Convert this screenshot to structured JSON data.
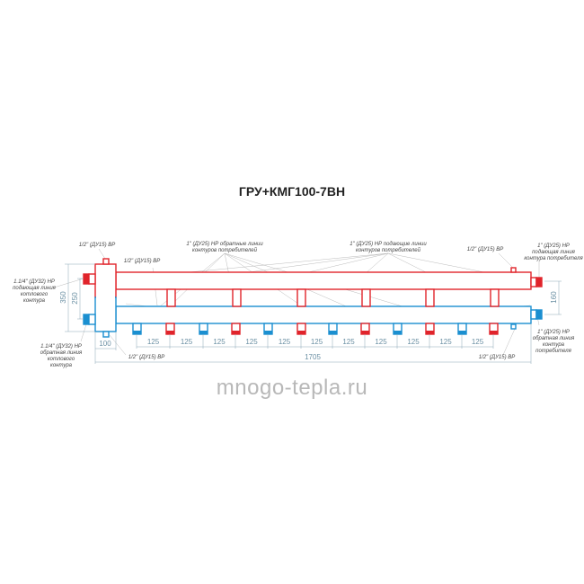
{
  "title": "ГРУ+КМГ100-7ВН",
  "watermark": "mnogo-tepla.ru",
  "colors": {
    "supply": "#e0242b",
    "return": "#1b8fd0",
    "dimension": "#6a8fa3"
  },
  "notes": {
    "top_left_nipple": "1/2\" (ДУ15) ВР",
    "inner_nipple": "1/2\" (ДУ15) ВР",
    "return_lines": [
      "1\" (ДУ25) НР обратные линии",
      "контуров потребителей"
    ],
    "supply_lines": [
      "1\" (ДУ25) НР подающие линии",
      "контуров потребителей"
    ],
    "top_right_nipple": "1/2\" (ДУ15) ВР",
    "right_supply": [
      "1\" (ДУ25) НР",
      "подающая линия",
      "контура потребителя"
    ],
    "left_supply": [
      "1.1/4\" (ДУ32) НР",
      "подающая линия",
      "котлового",
      "контура"
    ],
    "left_return": [
      "1.1/4\" (ДУ32) НР",
      "обратная линия",
      "котлового",
      "контура"
    ],
    "bottom_nipple": "1/2\" (ДУ15) ВР",
    "bottom_right_nipple": "1/2\" (ДУ15) ВР",
    "right_return": [
      "1\" (ДУ25) НР",
      "обратная линия",
      "контура",
      "потребителя"
    ]
  },
  "dimensions": {
    "height_total": "350",
    "height_inlets": "250",
    "separator_width": "100",
    "spacing": [
      "125",
      "125",
      "125",
      "125",
      "125",
      "125",
      "125",
      "125",
      "125",
      "125",
      "125"
    ],
    "length": "1705",
    "pipe_spacing": "160"
  },
  "outlets": [
    "return",
    "supply",
    "return",
    "supply",
    "return",
    "supply",
    "return",
    "supply",
    "return",
    "supply",
    "return",
    "supply"
  ]
}
